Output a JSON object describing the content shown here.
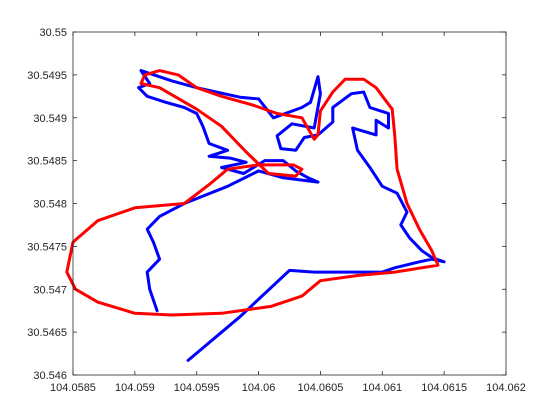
{
  "chart_data": {
    "type": "line",
    "title": "",
    "xlabel": "",
    "ylabel": "",
    "xlim": [
      104.0585,
      104.062
    ],
    "ylim": [
      30.546,
      30.55
    ],
    "grid": false,
    "legend": "none",
    "x_ticks": [
      "104.0585",
      "104.059",
      "104.0595",
      "104.06",
      "104.0605",
      "104.061",
      "104.0615",
      "104.062"
    ],
    "y_ticks": [
      "30.546",
      "30.5465",
      "30.547",
      "30.5475",
      "30.548",
      "30.5485",
      "30.549",
      "30.5495",
      "30.55"
    ],
    "series": [
      {
        "color": "#0000ff",
        "points": [
          [
            104.05943,
            30.54617
          ],
          [
            104.05985,
            30.54668
          ],
          [
            104.06025,
            30.54722
          ],
          [
            104.06045,
            30.5472
          ],
          [
            104.061,
            30.5472
          ],
          [
            104.0611,
            30.54725
          ],
          [
            104.0613,
            30.54732
          ],
          [
            104.0614,
            30.54735
          ],
          [
            104.0615,
            30.54732
          ],
          [
            104.0614,
            30.54737
          ],
          [
            104.06132,
            30.54745
          ],
          [
            104.06122,
            30.5476
          ],
          [
            104.06115,
            30.54775
          ],
          [
            104.0612,
            30.5479
          ],
          [
            104.06112,
            30.54812
          ],
          [
            104.061,
            30.5482
          ],
          [
            104.0609,
            30.54842
          ],
          [
            104.0608,
            30.54862
          ],
          [
            104.06076,
            30.54888
          ],
          [
            104.06095,
            30.5488
          ],
          [
            104.06095,
            30.54897
          ],
          [
            104.06105,
            30.54888
          ],
          [
            104.06105,
            30.54905
          ],
          [
            104.0609,
            30.54912
          ],
          [
            104.06085,
            30.5493
          ],
          [
            104.06075,
            30.54928
          ],
          [
            104.0606,
            30.54912
          ],
          [
            104.0606,
            30.54895
          ],
          [
            104.06048,
            30.5488
          ],
          [
            104.06037,
            30.54877
          ],
          [
            104.0603,
            30.54862
          ],
          [
            104.06018,
            30.54864
          ],
          [
            104.06015,
            30.54879
          ],
          [
            104.06027,
            30.54893
          ],
          [
            104.06045,
            30.54888
          ],
          [
            104.0605,
            30.54928
          ],
          [
            104.06048,
            30.54948
          ],
          [
            104.06042,
            30.54918
          ],
          [
            104.06035,
            30.54912
          ],
          [
            104.06012,
            30.549
          ],
          [
            104.06,
            30.54922
          ],
          [
            104.05985,
            30.54924
          ],
          [
            104.0595,
            30.54935
          ],
          [
            104.0593,
            30.54943
          ],
          [
            104.05905,
            30.54955
          ],
          [
            104.05912,
            30.5494
          ],
          [
            104.05903,
            30.54935
          ],
          [
            104.0591,
            30.54925
          ],
          [
            104.05925,
            30.54918
          ],
          [
            104.0594,
            30.54912
          ],
          [
            104.0595,
            30.54905
          ],
          [
            104.05955,
            30.5489
          ],
          [
            104.0596,
            30.5487
          ],
          [
            104.05975,
            30.54862
          ],
          [
            104.0596,
            30.54855
          ],
          [
            104.05977,
            30.54853
          ],
          [
            104.0599,
            30.54848
          ],
          [
            104.0597,
            30.54842
          ],
          [
            104.05988,
            30.54835
          ],
          [
            104.06005,
            30.5485
          ],
          [
            104.0602,
            30.5485
          ],
          [
            104.0603,
            30.54838
          ],
          [
            104.0604,
            30.5483
          ],
          [
            104.06048,
            30.54825
          ],
          [
            104.0602,
            30.5483
          ],
          [
            104.06,
            30.54838
          ],
          [
            104.05975,
            30.5482
          ],
          [
            104.0594,
            30.548
          ],
          [
            104.0592,
            30.54785
          ],
          [
            104.0591,
            30.5477
          ],
          [
            104.05915,
            30.54755
          ],
          [
            104.0592,
            30.54735
          ],
          [
            104.0591,
            30.5472
          ],
          [
            104.05912,
            30.547
          ],
          [
            104.05918,
            30.54675
          ]
        ]
      },
      {
        "color": "#ff0000",
        "points": [
          [
            104.05905,
            30.5494
          ],
          [
            104.0592,
            30.54935
          ],
          [
            104.0595,
            30.5491
          ],
          [
            104.0597,
            30.5489
          ],
          [
            104.0599,
            30.5486
          ],
          [
            104.06008,
            30.54835
          ],
          [
            104.0603,
            30.54832
          ],
          [
            104.06035,
            30.5484
          ],
          [
            104.06028,
            30.54845
          ],
          [
            104.06,
            30.54845
          ],
          [
            104.05975,
            30.5484
          ],
          [
            104.0596,
            30.54822
          ],
          [
            104.0594,
            30.548
          ],
          [
            104.059,
            30.54795
          ],
          [
            104.0587,
            30.5478
          ],
          [
            104.0585,
            30.54755
          ],
          [
            104.05845,
            30.5472
          ],
          [
            104.05852,
            30.547
          ],
          [
            104.0587,
            30.54685
          ],
          [
            104.059,
            30.54672
          ],
          [
            104.0593,
            30.5467
          ],
          [
            104.0597,
            30.54672
          ],
          [
            104.0601,
            30.5468
          ],
          [
            104.06035,
            30.54692
          ],
          [
            104.0605,
            30.5471
          ],
          [
            104.0608,
            30.54716
          ],
          [
            104.0611,
            30.5472
          ],
          [
            104.06145,
            30.54728
          ],
          [
            104.0614,
            30.54745
          ],
          [
            104.0613,
            30.5477
          ],
          [
            104.0612,
            30.548
          ],
          [
            104.06112,
            30.5484
          ],
          [
            104.0611,
            30.5488
          ],
          [
            104.06108,
            30.5491
          ],
          [
            104.06095,
            30.54935
          ],
          [
            104.06085,
            30.54945
          ],
          [
            104.0607,
            30.54945
          ],
          [
            104.0606,
            30.5493
          ],
          [
            104.0605,
            30.54908
          ],
          [
            104.06048,
            30.5488
          ],
          [
            104.06045,
            30.54875
          ],
          [
            104.06035,
            30.549
          ],
          [
            104.06015,
            30.54905
          ],
          [
            104.05995,
            30.54915
          ],
          [
            104.0597,
            30.54925
          ],
          [
            104.0595,
            30.54935
          ],
          [
            104.05935,
            30.5495
          ],
          [
            104.0592,
            30.54955
          ],
          [
            104.05908,
            30.5495
          ],
          [
            104.05905,
            30.5494
          ]
        ]
      }
    ]
  }
}
